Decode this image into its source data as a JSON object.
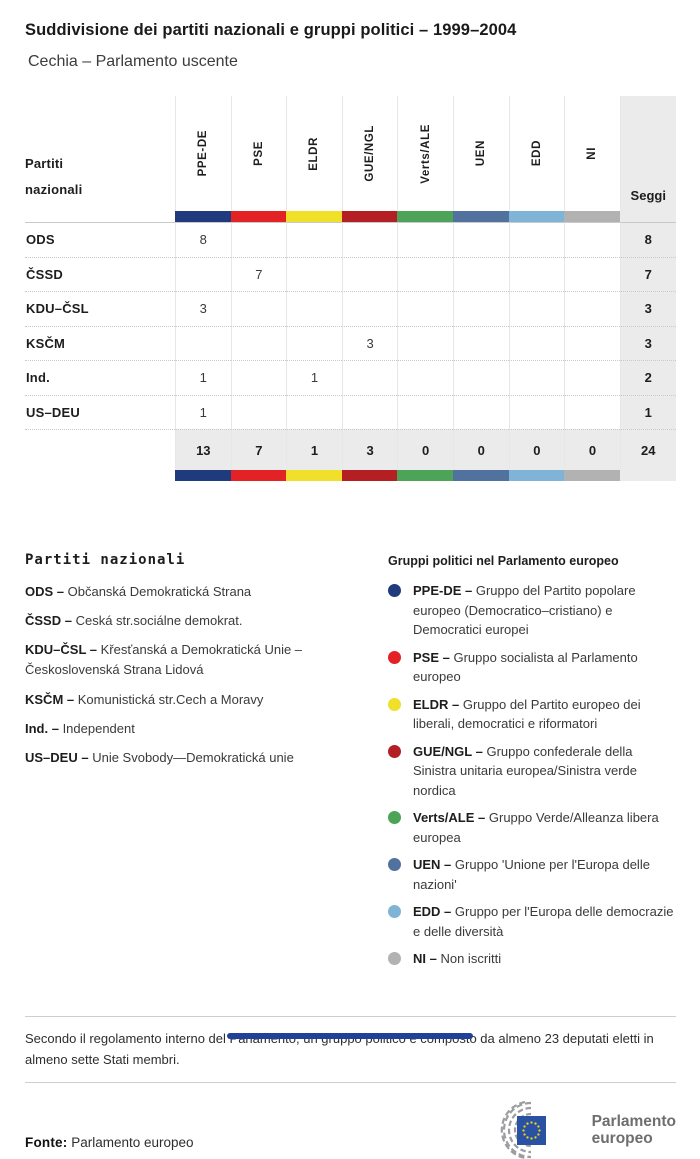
{
  "header": {
    "title": "Suddivisione dei partiti nazionali e gruppi politici – 1999–2004",
    "subtitle": "Cechia – Parlamento uscente"
  },
  "colors": {
    "seggi_bg": "#ebebeb",
    "groups": [
      "#1f3a7d",
      "#e32226",
      "#f0e02a",
      "#b41f24",
      "#4da358",
      "#51719f",
      "#7fb4d6",
      "#b2b2b2"
    ],
    "logo_blue": "#2952a3",
    "logo_star": "#f6d216",
    "logo_gray": "#9b9da0"
  },
  "table": {
    "row_header_line1": "Partiti",
    "row_header_line2": "nazionali",
    "seats_label": "Seggi",
    "group_labels": [
      "PPE-DE",
      "PSE",
      "ELDR",
      "GUE/NGL",
      "Verts/ALE",
      "UEN",
      "EDD",
      "NI"
    ],
    "rows": [
      {
        "party": "ODS",
        "cells": [
          "8",
          "",
          "",
          "",
          "",
          "",
          "",
          ""
        ],
        "seats": "8"
      },
      {
        "party": "ČSSD",
        "cells": [
          "",
          "7",
          "",
          "",
          "",
          "",
          "",
          ""
        ],
        "seats": "7"
      },
      {
        "party": "KDU–ČSL",
        "cells": [
          "3",
          "",
          "",
          "",
          "",
          "",
          "",
          ""
        ],
        "seats": "3"
      },
      {
        "party": "KSČM",
        "cells": [
          "",
          "",
          "",
          "3",
          "",
          "",
          "",
          ""
        ],
        "seats": "3"
      },
      {
        "party": "Ind.",
        "cells": [
          "1",
          "",
          "1",
          "",
          "",
          "",
          "",
          ""
        ],
        "seats": "2"
      },
      {
        "party": "US–DEU",
        "cells": [
          "1",
          "",
          "",
          "",
          "",
          "",
          "",
          ""
        ],
        "seats": "1"
      }
    ],
    "totals": {
      "cells": [
        "13",
        "7",
        "1",
        "3",
        "0",
        "0",
        "0",
        "0"
      ],
      "seats": "24"
    }
  },
  "chart_data": {
    "type": "table",
    "title": "Suddivisione dei partiti nazionali e gruppi politici – 1999–2004",
    "subtitle": "Cechia – Parlamento uscente",
    "columns": [
      "PPE-DE",
      "PSE",
      "ELDR",
      "GUE/NGL",
      "Verts/ALE",
      "UEN",
      "EDD",
      "NI",
      "Seggi"
    ],
    "rows": [
      {
        "party": "ODS",
        "values": [
          8,
          null,
          null,
          null,
          null,
          null,
          null,
          null
        ],
        "seats": 8
      },
      {
        "party": "ČSSD",
        "values": [
          null,
          7,
          null,
          null,
          null,
          null,
          null,
          null
        ],
        "seats": 7
      },
      {
        "party": "KDU–ČSL",
        "values": [
          3,
          null,
          null,
          null,
          null,
          null,
          null,
          null
        ],
        "seats": 3
      },
      {
        "party": "KSČM",
        "values": [
          null,
          null,
          null,
          3,
          null,
          null,
          null,
          null
        ],
        "seats": 3
      },
      {
        "party": "Ind.",
        "values": [
          1,
          null,
          1,
          null,
          null,
          null,
          null,
          null
        ],
        "seats": 2
      },
      {
        "party": "US–DEU",
        "values": [
          1,
          null,
          null,
          null,
          null,
          null,
          null,
          null
        ],
        "seats": 1
      }
    ],
    "totals": [
      13,
      7,
      1,
      3,
      0,
      0,
      0,
      0
    ],
    "total_seats": 24,
    "group_colors": [
      "#1f3a7d",
      "#e32226",
      "#f0e02a",
      "#b41f24",
      "#4da358",
      "#51719f",
      "#7fb4d6",
      "#b2b2b2"
    ]
  },
  "legend_parties": {
    "heading": "Partiti nazionali",
    "items": [
      {
        "abbr": "ODS",
        "name": "Občanská Demokratická Strana"
      },
      {
        "abbr": "ČSSD",
        "name": "Ceská str.sociálne demokrat."
      },
      {
        "abbr": "KDU–ČSL",
        "name": "Křesťanská a Demokratická Unie – Československá Strana Lidová"
      },
      {
        "abbr": "KSČM",
        "name": "Komunistická str.Cech a Moravy"
      },
      {
        "abbr": "Ind.",
        "name": "Independent"
      },
      {
        "abbr": "US–DEU",
        "name": "Unie Svobody—Demokratická unie"
      }
    ]
  },
  "legend_groups": {
    "heading": "Gruppi politici nel Parlamento europeo",
    "items": [
      {
        "abbr": "PPE-DE",
        "color": "#1f3a7d",
        "desc": "Gruppo del Partito popolare europeo (Democratico–cristiano) e Democratici europei"
      },
      {
        "abbr": "PSE",
        "color": "#e32226",
        "desc": "Gruppo socialista al Parlamento europeo"
      },
      {
        "abbr": "ELDR",
        "color": "#f0e02a",
        "desc": "Gruppo del Partito europeo dei liberali, democratici e riformatori"
      },
      {
        "abbr": "GUE/NGL",
        "color": "#b41f24",
        "desc": "Gruppo confederale della Sinistra unitaria europea/Sinistra verde nordica"
      },
      {
        "abbr": "Verts/ALE",
        "color": "#4da358",
        "desc": "Gruppo Verde/Alleanza libera europea"
      },
      {
        "abbr": "UEN",
        "color": "#51719f",
        "desc": "Gruppo 'Unione per l'Europa delle nazioni'"
      },
      {
        "abbr": "EDD",
        "color": "#7fb4d6",
        "desc": "Gruppo per l'Europa delle democrazie e delle diversità"
      },
      {
        "abbr": "NI",
        "color": "#b2b2b2",
        "desc": "Non iscritti"
      }
    ]
  },
  "note": "Secondo il regolamento interno del Parlamento, un gruppo politico è composto da almeno 23 deputati eletti in almeno sette Stati membri.",
  "footer": {
    "source_label": "Fonte:",
    "source_text": "Parlamento europeo",
    "logo_line1": "Parlamento",
    "logo_line2": "europeo"
  }
}
